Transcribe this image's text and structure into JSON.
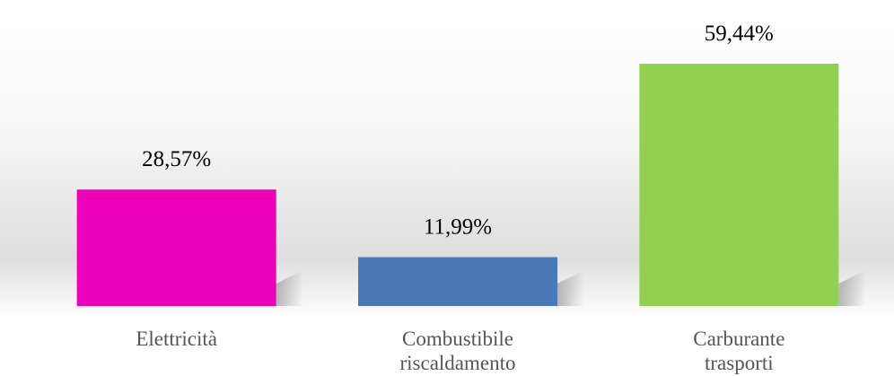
{
  "chart_data": {
    "type": "bar",
    "categories": [
      "Elettricità",
      "Combustibile riscaldamento",
      "Carburante trasporti"
    ],
    "values": [
      28.57,
      11.99,
      59.44
    ],
    "value_labels": [
      "28,57%",
      "11,99%",
      "59,44%"
    ],
    "colors": [
      "#ee00bb",
      "#4a78b9",
      "#92d050"
    ]
  }
}
